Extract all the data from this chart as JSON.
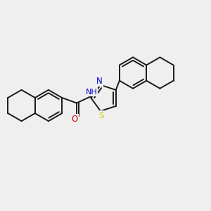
{
  "background_color": "#efefef",
  "bond_color": "#1a1a1a",
  "bond_width": 1.4,
  "S_color": "#cccc00",
  "N_color": "#0000cc",
  "O_color": "#dd0000",
  "figsize": [
    3.0,
    3.0
  ],
  "dpi": 100,
  "xlim": [
    -0.05,
    1.05
  ],
  "ylim": [
    -0.05,
    1.05
  ]
}
